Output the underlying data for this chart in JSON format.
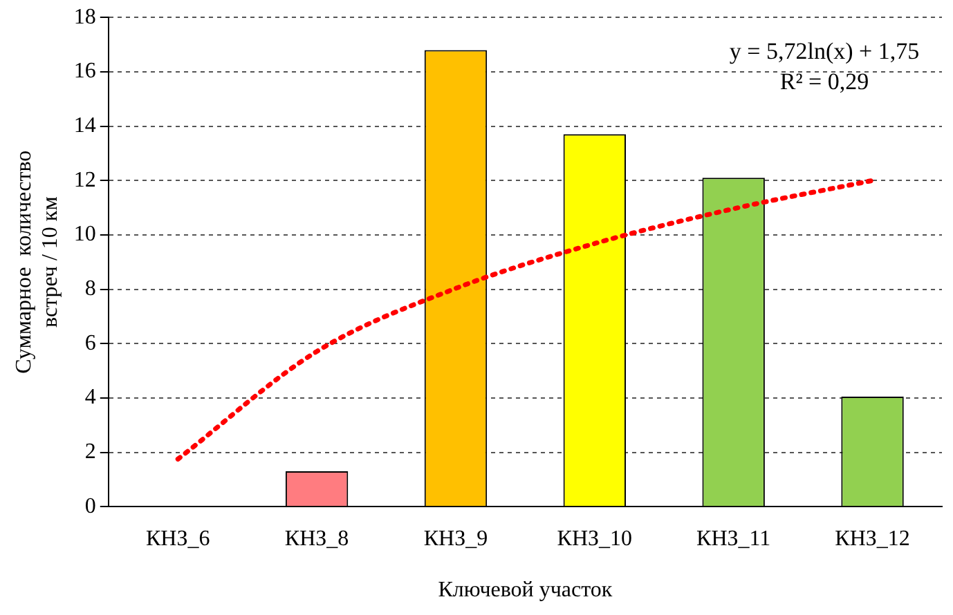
{
  "chart_data": {
    "type": "bar",
    "xlabel": "Ключевой участок",
    "ylabel": "Суммарное  количество\nвстреч / 10 км",
    "categories": [
      "КНЗ_6",
      "КНЗ_8",
      "КНЗ_9",
      "КНЗ_10",
      "КНЗ_11",
      "КНЗ_12"
    ],
    "series": [
      {
        "colors": [
          "#ff7c80",
          "#ff7c80",
          "#ffc000",
          "#ffff00",
          "#92d050",
          "#92d050"
        ],
        "values": [
          0,
          1.3,
          16.8,
          13.7,
          12.1,
          4.05
        ]
      },
      {
        "type": "line",
        "color": "#ff0000",
        "line_style": "dotted",
        "marker": "none",
        "x": [
          "КНЗ_6",
          "КНЗ_8",
          "КНЗ_9",
          "КНЗ_10",
          "КНЗ_11",
          "КНЗ_12"
        ],
        "values": [
          1.75,
          5.71,
          8.03,
          9.68,
          10.96,
          12.0
        ]
      }
    ],
    "ylim": [
      0,
      18
    ],
    "yticks": [
      0,
      2,
      4,
      6,
      8,
      10,
      12,
      14,
      16,
      18
    ],
    "grid": "y",
    "legend": false,
    "annotations": [
      "y = 5,72ln(x) + 1,75",
      "R² = 0,29"
    ]
  }
}
